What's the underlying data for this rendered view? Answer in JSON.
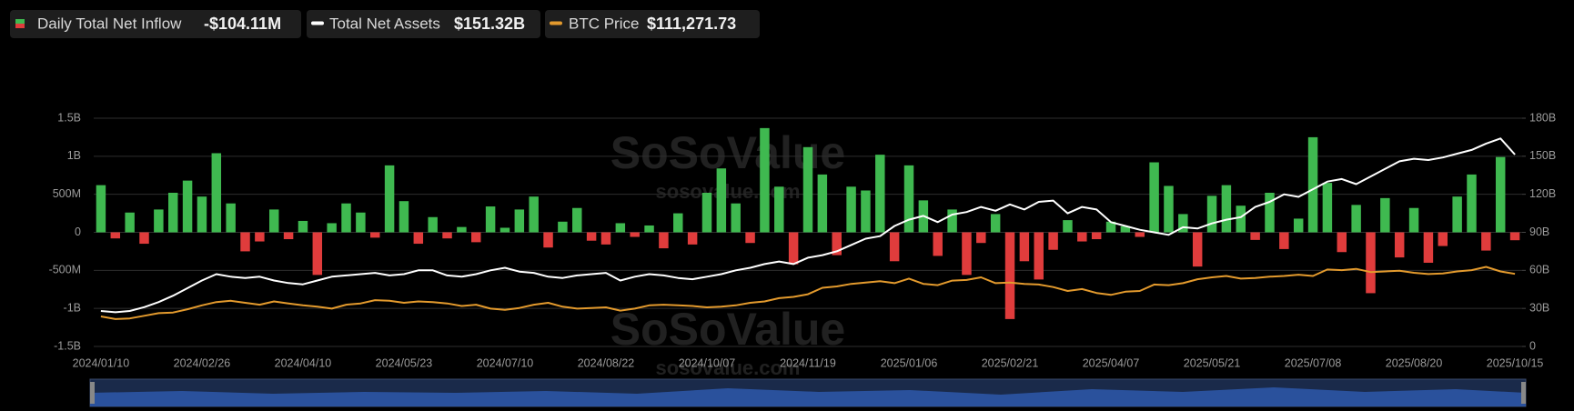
{
  "chart_data": {
    "type": "combo",
    "watermark": [
      "SoSoValue",
      "sosovalue.com"
    ],
    "categories": [
      "2024/01/10",
      null,
      null,
      null,
      null,
      null,
      null,
      "2024/02/26",
      null,
      null,
      null,
      null,
      null,
      null,
      "2024/04/10",
      null,
      null,
      null,
      null,
      null,
      null,
      "2024/05/23",
      null,
      null,
      null,
      null,
      null,
      null,
      "2024/07/10",
      null,
      null,
      null,
      null,
      null,
      null,
      "2024/08/22",
      null,
      null,
      null,
      null,
      null,
      null,
      "2024/10/07",
      null,
      null,
      null,
      null,
      null,
      null,
      "2024/11/19",
      null,
      null,
      null,
      null,
      null,
      null,
      "2025/01/06",
      null,
      null,
      null,
      null,
      null,
      null,
      "2025/02/21",
      null,
      null,
      null,
      null,
      null,
      null,
      "2025/04/07",
      null,
      null,
      null,
      null,
      null,
      null,
      "2025/05/21",
      null,
      null,
      null,
      null,
      null,
      null,
      "2025/07/08",
      null,
      null,
      null,
      null,
      null,
      null,
      "2025/08/20",
      null,
      null,
      null,
      null,
      null,
      null,
      "2025/10/15"
    ],
    "ylim": [
      -1500,
      1500
    ],
    "yticks": [
      {
        "value": -1500,
        "label": "-1.5B"
      },
      {
        "value": -1000,
        "label": "-1B"
      },
      {
        "value": -500,
        "label": "-500M"
      },
      0,
      {
        "value": 500,
        "label": "500M"
      },
      {
        "value": 1000,
        "label": "1B"
      },
      {
        "value": 1500,
        "label": "1.5B"
      }
    ],
    "y2lim": [
      0,
      180
    ],
    "y2ticks": [
      0,
      {
        "value": 30,
        "label": "30B"
      },
      {
        "value": 60,
        "label": "60B"
      },
      {
        "value": 90,
        "label": "90B"
      },
      {
        "value": 120,
        "label": "120B"
      },
      {
        "value": 150,
        "label": "150B"
      },
      {
        "value": 180,
        "label": "180B"
      }
    ],
    "y3lim": [
      0,
      350000
    ],
    "grid": true,
    "series": [
      {
        "name": "Daily Total Net Inflow",
        "legend_value": "-$104.11M",
        "type": "bar",
        "color": "#3fb950",
        "negative_color": "#e03c3c",
        "values": [
          620,
          -80,
          260,
          -150,
          300,
          520,
          680,
          470,
          1040,
          380,
          -250,
          -120,
          300,
          -90,
          150,
          -560,
          120,
          380,
          260,
          -70,
          880,
          410,
          -150,
          200,
          -80,
          70,
          -130,
          340,
          60,
          300,
          470,
          -200,
          140,
          320,
          -110,
          -160,
          120,
          -60,
          90,
          -210,
          250,
          -160,
          520,
          840,
          380,
          -140,
          1370,
          600,
          -420,
          1120,
          760,
          -300,
          600,
          550,
          1020,
          -380,
          880,
          420,
          -310,
          300,
          -560,
          -140,
          240,
          -1140,
          -380,
          -620,
          -230,
          160,
          -120,
          -90,
          140,
          80,
          -60,
          920,
          610,
          240,
          -450,
          480,
          620,
          350,
          -100,
          520,
          -220,
          180,
          1250,
          650,
          -260,
          360,
          -800,
          450,
          -330,
          320,
          -400,
          -180,
          470,
          760,
          -240,
          990,
          -104.11
        ]
      },
      {
        "name": "Total Net Assets",
        "legend_value": "$151.32B",
        "type": "line",
        "axis": "y2",
        "color": "#ffffff",
        "values": [
          28,
          27,
          28,
          31,
          35,
          40,
          46,
          52,
          57,
          55,
          54,
          55,
          52,
          50,
          49,
          52,
          55,
          56,
          57,
          58,
          56,
          57,
          60,
          60,
          56,
          55,
          57,
          60,
          62,
          59,
          58,
          55,
          54,
          56,
          57,
          58,
          52,
          55,
          57,
          56,
          54,
          53,
          55,
          57,
          60,
          62,
          65,
          67,
          65,
          70,
          72,
          75,
          80,
          85,
          87,
          95,
          100,
          103,
          98,
          104,
          106,
          110,
          107,
          112,
          108,
          114,
          115,
          105,
          110,
          108,
          98,
          95,
          92,
          90,
          88,
          94,
          93,
          97,
          100,
          102,
          110,
          114,
          120,
          118,
          124,
          130,
          132,
          128,
          134,
          140,
          146,
          148,
          147,
          149,
          152,
          155,
          160,
          164,
          151.32
        ]
      },
      {
        "name": "BTC Price",
        "legend_value": "$111,271.73",
        "type": "line",
        "axis": "y3",
        "color": "#e39a2d",
        "values": [
          46000,
          42000,
          43000,
          47000,
          51000,
          52000,
          57000,
          63000,
          68000,
          70000,
          67000,
          64000,
          69000,
          66000,
          63000,
          61000,
          58000,
          64000,
          66000,
          71000,
          70000,
          67000,
          69000,
          68000,
          66000,
          62000,
          64000,
          58000,
          56000,
          59000,
          64000,
          67000,
          61000,
          58000,
          59000,
          60000,
          55000,
          58000,
          63000,
          64000,
          63000,
          62000,
          60000,
          61000,
          63000,
          67000,
          69000,
          74000,
          76000,
          80000,
          90000,
          92000,
          96000,
          98000,
          100000,
          97000,
          104000,
          96000,
          94000,
          101000,
          102000,
          106000,
          97000,
          98000,
          96000,
          95000,
          91000,
          85000,
          88000,
          82000,
          79000,
          84000,
          85000,
          95000,
          94000,
          97000,
          103000,
          106000,
          108000,
          104000,
          105000,
          107000,
          108000,
          110000,
          108000,
          118000,
          117000,
          119000,
          114000,
          115000,
          116000,
          113000,
          111000,
          112000,
          115000,
          117000,
          122000,
          115000,
          111271.73
        ]
      }
    ]
  }
}
